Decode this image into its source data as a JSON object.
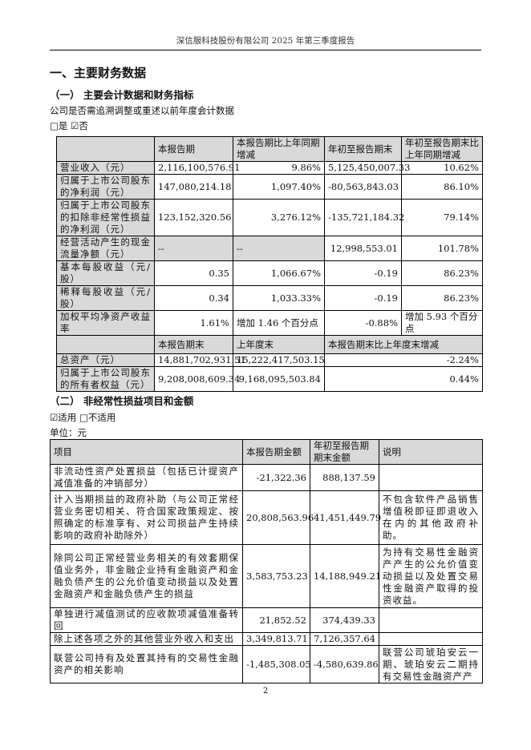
{
  "header": "深信服科技股份有限公司 2025 年第三季度报告",
  "section_title": "一、主要财务数据",
  "sub1": {
    "title": "（一） 主要会计数据和财务指标",
    "question": "公司是否需追溯调整或重述以前年度会计数据",
    "options": "□是 ☑否",
    "columns": [
      "",
      "本报告期",
      "本报告期比上年同期增减",
      "年初至报告期末",
      "年初至报告期末比上年同期增减"
    ],
    "rows": [
      [
        "营业收入（元）",
        "2,116,100,576.91",
        "9.86%",
        "5,125,450,007.33",
        "10.62%"
      ],
      [
        "归属于上市公司股东的净利润（元）",
        "147,080,214.18",
        "1,097.40%",
        "-80,563,843.03",
        "86.10%"
      ],
      [
        "归属于上市公司股东的扣除非经常性损益的净利润（元）",
        "123,152,320.56",
        "3,276.12%",
        "-135,721,184.32",
        "79.14%"
      ],
      [
        "经营活动产生的现金流量净额（元）",
        "--",
        "--",
        "12,998,553.01",
        "101.78%"
      ],
      [
        "基本每股收益（元/股）",
        "0.35",
        "1,066.67%",
        "-0.19",
        "86.23%"
      ],
      [
        "稀释每股收益（元/股）",
        "0.34",
        "1,033.33%",
        "-0.19",
        "86.23%"
      ],
      [
        "加权平均净资产收益率",
        "1.61%",
        "增加 1.46 个百分点",
        "-0.88%",
        "增加 5.93 个百分点"
      ]
    ],
    "columns2": [
      "",
      "本报告期末",
      "上年度末",
      "本报告期末比上年度末增减"
    ],
    "rows2": [
      [
        "总资产（元）",
        "14,881,702,931.51",
        "15,222,417,503.15",
        "-2.24%"
      ],
      [
        "归属于上市公司股东的所有者权益（元）",
        "9,208,008,609.34",
        "9,168,095,503.84",
        "0.44%"
      ]
    ]
  },
  "sub2": {
    "title": "（二） 非经常性损益项目和金额",
    "options": "☑适用 □不适用",
    "unit": "单位：元",
    "columns": [
      "项目",
      "本报告期金额",
      "年初至报告期期末金额",
      "说明"
    ],
    "rows": [
      [
        "非流动性资产处置损益（包括已计提资产减值准备的冲销部分）",
        "-21,322.36",
        "888,137.59",
        ""
      ],
      [
        "计入当期损益的政府补助（与公司正常经营业务密切相关、符合国家政策规定、按照确定的标准享有、对公司损益产生持续影响的政府补助除外）",
        "20,808,563.96",
        "41,451,449.79",
        "不包含软件产品销售增值税即征即退收入在内的其他政府补助。"
      ],
      [
        "除同公司正常经营业务相关的有效套期保值业务外，非金融企业持有金融资产和金融负债产生的公允价值变动损益以及处置金融资产和金融负债产生的损益",
        "3,583,753.23",
        "14,188,949.21",
        "为持有交易性金融资产产生的公允价值变动损益以及处置交易性金融资产取得的投资收益。"
      ],
      [
        "单独进行减值测试的应收款项减值准备转回",
        "21,852.52",
        "374,439.33",
        ""
      ],
      [
        "除上述各项之外的其他营业外收入和支出",
        "3,349,813.71",
        "7,126,357.64",
        ""
      ],
      [
        "联营公司持有及处置其持有的交易性金融资产的相关影响",
        "-1,485,308.05",
        "-4,580,639.86",
        "联营公司琥珀安云一期、琥珀安云二期持有交易性金融资产产"
      ]
    ]
  },
  "page_number": "2"
}
